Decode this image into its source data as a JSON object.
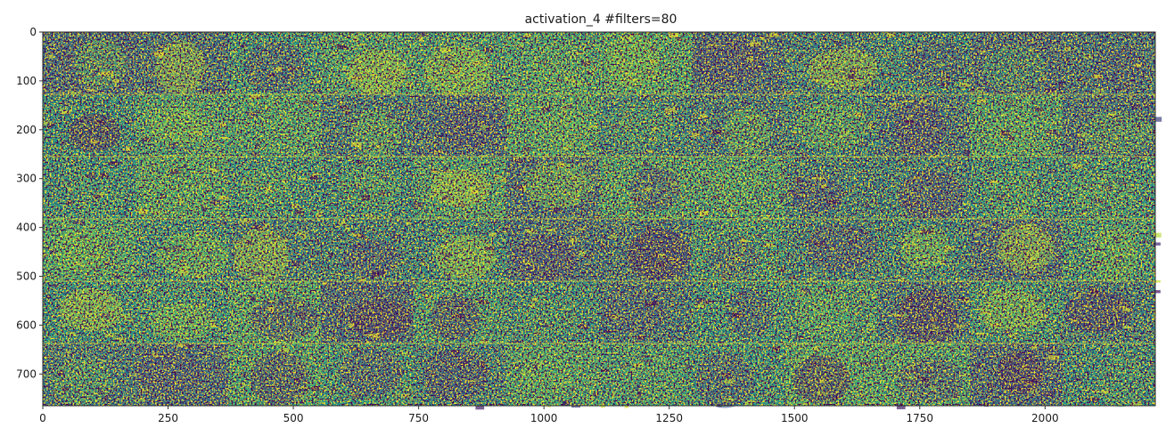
{
  "chart_data": {
    "type": "heatmap",
    "title": "activation_4 #filters=80",
    "xlabel": "",
    "ylabel": "",
    "colormap": "viridis",
    "colors": {
      "low": "#440154",
      "mid": "#21918c",
      "high": "#fde725",
      "separator": "#e8e83a",
      "frame": "#2a2a2a"
    },
    "xlim": [
      0,
      2220
    ],
    "ylim": [
      765,
      0
    ],
    "x_ticks": [
      0,
      250,
      500,
      750,
      1000,
      1250,
      1500,
      1750,
      2000
    ],
    "y_ticks": [
      0,
      100,
      200,
      300,
      400,
      500,
      600,
      700
    ],
    "grid_rows": 6,
    "grid_cols": 12,
    "tile_size": 185,
    "tile_height": 127.5,
    "filters": 80,
    "grid": false,
    "legend": "none"
  }
}
